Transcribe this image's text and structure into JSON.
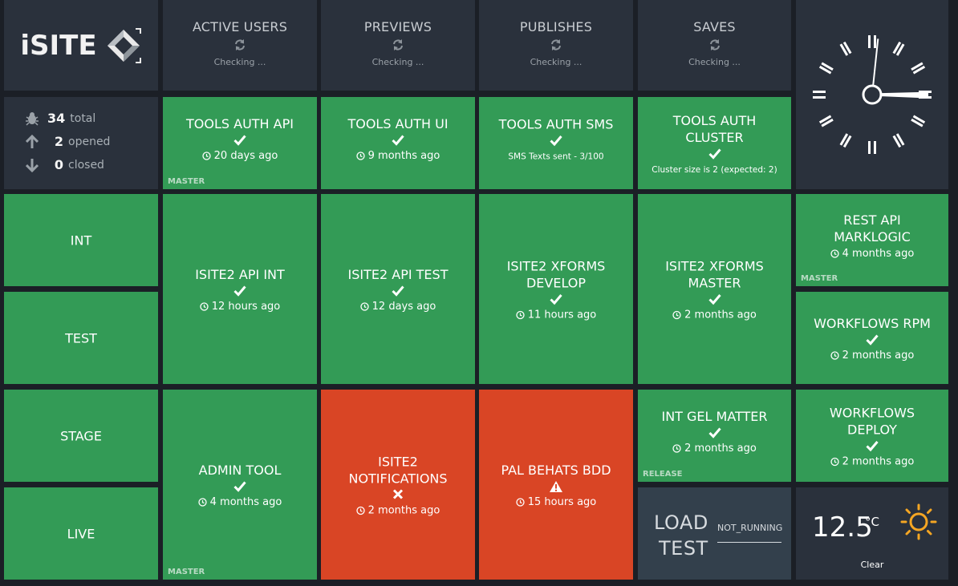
{
  "logo": {
    "text": "iSITE",
    "icon": "isite-diamond-logo"
  },
  "stats": [
    {
      "title": "ACTIVE USERS",
      "status": "Checking ...",
      "icon": "refresh-icon"
    },
    {
      "title": "PREVIEWS",
      "status": "Checking ...",
      "icon": "refresh-icon"
    },
    {
      "title": "PUBLISHES",
      "status": "Checking ...",
      "icon": "refresh-icon"
    },
    {
      "title": "SAVES",
      "status": "Checking ...",
      "icon": "refresh-icon"
    }
  ],
  "issues": {
    "total": {
      "count": "34",
      "label": "total",
      "icon": "bug-icon"
    },
    "opened": {
      "count": "2",
      "label": "opened",
      "icon": "arrow-up-icon"
    },
    "closed": {
      "count": "0",
      "label": "closed",
      "icon": "arrow-down-icon"
    }
  },
  "environments": [
    "INT",
    "TEST",
    "STAGE",
    "LIVE"
  ],
  "tiles": {
    "tools_auth_api": {
      "title": "TOOLS AUTH API",
      "time": "20 days ago",
      "corner": "MASTER",
      "status": "ok"
    },
    "tools_auth_ui": {
      "title": "TOOLS AUTH UI",
      "time": "9 months ago",
      "status": "ok"
    },
    "tools_auth_sms": {
      "title": "TOOLS AUTH SMS",
      "extra": "SMS Texts sent - 3/100",
      "status": "ok"
    },
    "tools_auth_cluster": {
      "title": "TOOLS AUTH CLUSTER",
      "extra": "Cluster size is 2 (expected: 2)",
      "status": "ok"
    },
    "isite2_api_int": {
      "title": "ISITE2 API INT",
      "time": "12 hours ago",
      "status": "ok"
    },
    "isite2_api_test": {
      "title": "ISITE2 API TEST",
      "time": "12 days ago",
      "status": "ok"
    },
    "isite2_xforms_develop": {
      "title": "ISITE2 XFORMS DEVELOP",
      "time": "11 hours ago",
      "status": "ok"
    },
    "isite2_xforms_master": {
      "title": "ISITE2 XFORMS MASTER",
      "time": "2 months ago",
      "status": "ok"
    },
    "rest_api_marklogic": {
      "title": "REST API MARKLOGIC",
      "time": "4 months ago",
      "corner": "MASTER",
      "status": "ok"
    },
    "workflows_rpm": {
      "title": "WORKFLOWS RPM",
      "time": "2 months ago",
      "status": "ok"
    },
    "admin_tool": {
      "title": "ADMIN TOOL",
      "time": "4 months ago",
      "corner": "MASTER",
      "status": "ok"
    },
    "isite2_notifications": {
      "title": "ISITE2 NOTIFICATIONS",
      "time": "2 months ago",
      "status": "failed"
    },
    "pal_behats_bdd": {
      "title": "PAL BEHATS BDD",
      "time": "15 hours ago",
      "status": "warning"
    },
    "int_gel_matter": {
      "title": "INT GEL MATTER",
      "time": "2 months ago",
      "corner": "RELEASE",
      "status": "ok"
    },
    "workflows_deploy": {
      "title": "WORKFLOWS DEPLOY",
      "time": "2 months ago",
      "status": "ok"
    }
  },
  "load_test": {
    "line1": "LOAD",
    "line2": "TEST",
    "status": "NOT_RUNNING"
  },
  "weather": {
    "temp": "12.5",
    "unit": "°C",
    "description": "Clear",
    "icon": "sun-icon"
  },
  "clock": {
    "hour": 3,
    "minute": 1
  },
  "colors": {
    "ok": "#339b56",
    "failed": "#d94525",
    "tile": "#2a313c"
  }
}
